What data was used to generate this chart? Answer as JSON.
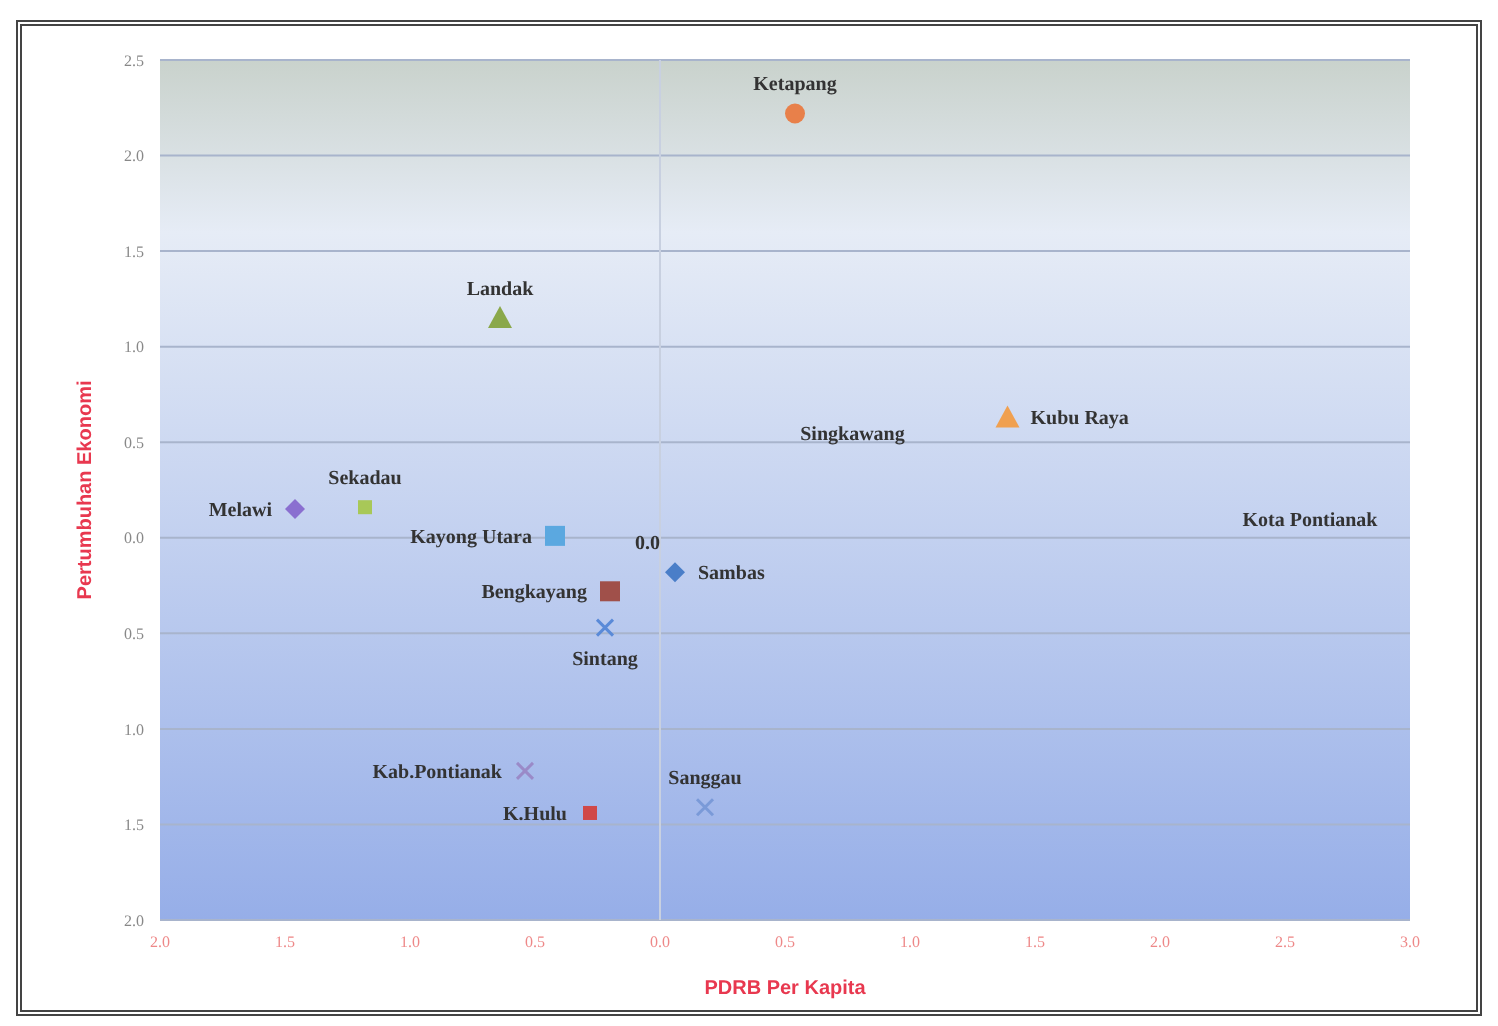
{
  "chart_data": {
    "type": "scatter",
    "xlabel": "PDRB Per Kapita",
    "ylabel": "Pertumbuhan Ekonomi",
    "xlim": [
      -2.0,
      3.0
    ],
    "xticks": [
      {
        "value": -2.0,
        "label": "2.0"
      },
      {
        "value": -1.5,
        "label": "1.5"
      },
      {
        "value": -1.0,
        "label": "1.0"
      },
      {
        "value": -0.5,
        "label": "0.5"
      },
      {
        "value": 0,
        "label": "0.0"
      },
      0.5,
      {
        "value": 1,
        "label": "1.0"
      },
      1.5,
      {
        "value": 2,
        "label": "2.0"
      },
      2.5,
      {
        "value": 3,
        "label": "3.0"
      }
    ],
    "ylim": [
      -2.0,
      2.5
    ],
    "yticks": [
      {
        "value": -2.0,
        "label": "2.0"
      },
      {
        "value": -1.5,
        "label": "1.5"
      },
      {
        "value": -1.0,
        "label": "1.0"
      },
      {
        "value": -0.5,
        "label": "0.5"
      },
      {
        "value": 0,
        "label": "0.0"
      },
      0.5,
      {
        "value": 1,
        "label": "1.0"
      },
      1.5,
      {
        "value": 2,
        "label": "2.0"
      },
      2.5
    ],
    "grid": "y",
    "legend": false,
    "ref_lines": [
      {
        "axis": "x",
        "value": 0,
        "color": "#c8d0e0"
      }
    ],
    "series": [
      {
        "name": "Ketapang",
        "color": "#e8804a",
        "marker": "circle",
        "x": [
          0.54
        ],
        "values": [
          2.22
        ]
      },
      {
        "name": "Landak",
        "color": "#8aa84a",
        "marker": "triangle",
        "x": [
          -0.64
        ],
        "values": [
          1.15
        ]
      },
      {
        "name": "Kubu Raya",
        "color": "#f0a050",
        "marker": "triangle",
        "x": [
          1.39
        ],
        "values": [
          0.63
        ]
      },
      {
        "name": "Melawi",
        "color": "#8a6fd0",
        "marker": "diamond",
        "x": [
          -1.46
        ],
        "values": [
          0.15
        ]
      },
      {
        "name": "Sekadau",
        "color": "#a8c858",
        "marker": "square",
        "x": [
          -1.18
        ],
        "values": [
          0.16
        ]
      },
      {
        "name": "Kayong Utara",
        "color": "#5ba8e0",
        "marker": "square",
        "x": [
          -0.42
        ],
        "values": [
          0.01
        ]
      },
      {
        "name": "Sambas",
        "color": "#4a7ec8",
        "marker": "diamond",
        "x": [
          0.06
        ],
        "values": [
          -0.18
        ]
      },
      {
        "name": "Bengkayang",
        "color": "#a0504a",
        "marker": "square",
        "x": [
          -0.2
        ],
        "values": [
          -0.28
        ]
      },
      {
        "name": "Sintang",
        "color": "#5a8ad8",
        "marker": "cross",
        "x": [
          -0.22
        ],
        "values": [
          -0.47
        ]
      },
      {
        "name": "Kab.Pontianak",
        "color": "#9a8ac8",
        "marker": "cross",
        "x": [
          -0.54
        ],
        "values": [
          -1.22
        ]
      },
      {
        "name": "Sanggau",
        "color": "#7a9ad8",
        "marker": "cross",
        "x": [
          0.18
        ],
        "values": [
          -1.41
        ]
      },
      {
        "name": "K.Hulu",
        "color": "#d04848",
        "marker": "square",
        "x": [
          -0.28
        ],
        "values": [
          -1.44
        ]
      }
    ],
    "annotations": [
      "Singkawang",
      "Kota Pontianak",
      "0.0"
    ]
  }
}
